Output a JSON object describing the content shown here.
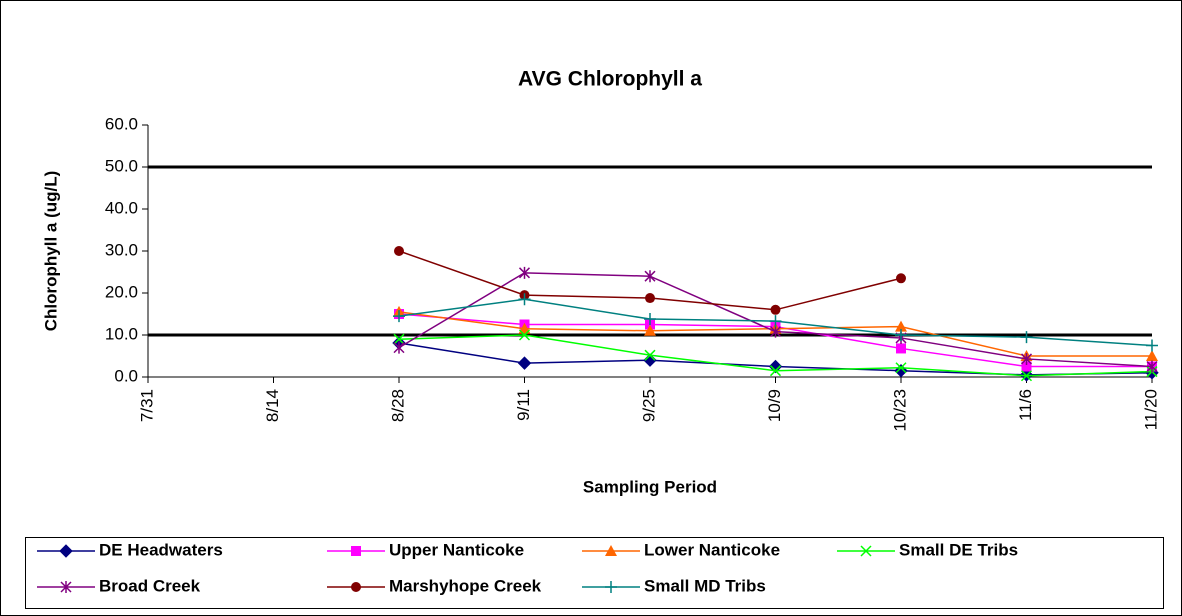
{
  "chart_data": {
    "type": "line",
    "title": "AVG Chlorophyll a",
    "x_label": "Sampling Period",
    "y_label": "Chlorophyll a (ug/L)",
    "categories": [
      "7/31",
      "8/14",
      "8/28",
      "9/11",
      "9/25",
      "10/9",
      "10/23",
      "11/6",
      "11/20"
    ],
    "ylim": [
      0,
      60
    ],
    "yticks": [
      {
        "value": 0,
        "label": "0.0"
      },
      {
        "value": 10,
        "label": "10.0"
      },
      {
        "value": 20,
        "label": "20.0"
      },
      {
        "value": 30,
        "label": "30.0"
      },
      {
        "value": 40,
        "label": "40.0"
      },
      {
        "value": 50,
        "label": "50.0"
      },
      {
        "value": 60,
        "label": "60.0"
      }
    ],
    "reference_lines": [
      50,
      10
    ],
    "legend": "bottom",
    "series": [
      {
        "name": "DE Headwaters",
        "color": "#000080",
        "marker": "diamond",
        "values": [
          null,
          null,
          8.1,
          3.3,
          4.0,
          2.5,
          1.5,
          0.5,
          1.0
        ]
      },
      {
        "name": "Upper Nanticoke",
        "color": "#ff00ff",
        "marker": "square",
        "values": [
          null,
          null,
          15.0,
          12.5,
          12.5,
          12.0,
          6.8,
          2.5,
          2.5
        ]
      },
      {
        "name": "Lower Nanticoke",
        "color": "#ff6600",
        "marker": "triangle",
        "values": [
          null,
          null,
          15.5,
          11.5,
          11.0,
          11.5,
          12.0,
          5.0,
          5.0
        ]
      },
      {
        "name": "Small DE Tribs",
        "color": "#00ff00",
        "marker": "x",
        "values": [
          null,
          null,
          9.0,
          10.0,
          5.2,
          1.5,
          2.2,
          0.3,
          1.3
        ]
      },
      {
        "name": "Broad Creek",
        "color": "#800080",
        "marker": "star",
        "values": [
          null,
          null,
          7.0,
          24.8,
          24.0,
          10.8,
          9.3,
          4.3,
          2.5
        ]
      },
      {
        "name": "Marshyhope Creek",
        "color": "#800000",
        "marker": "circle",
        "values": [
          null,
          null,
          30.0,
          19.5,
          18.8,
          16.0,
          23.5,
          null,
          null
        ]
      },
      {
        "name": "Small MD Tribs",
        "color": "#008080",
        "marker": "plus",
        "values": [
          null,
          null,
          14.5,
          18.5,
          13.8,
          13.3,
          10.0,
          9.5,
          7.5
        ]
      }
    ]
  }
}
